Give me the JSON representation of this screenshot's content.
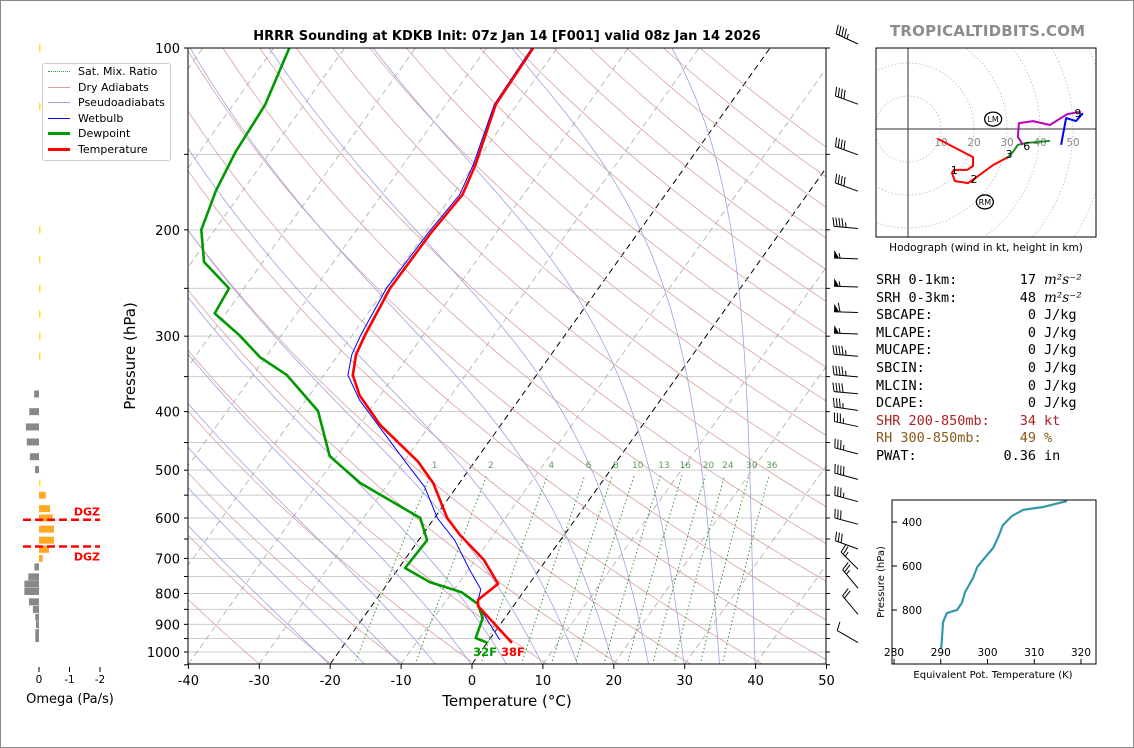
{
  "title": "HRRR Sounding at KDKB Init: 07z Jan 14 [F001] valid 08z Jan 14 2026",
  "watermark": "TROPICALTIDBITS.COM",
  "colors": {
    "temperature": "#ff0000",
    "dewpoint": "#009900",
    "wetbulb": "#0000ff",
    "dry_adiabats": "#d9a0a0",
    "pseudoadiabats": "#a0a0e0",
    "sat_mix_ratio": "#339933",
    "theta_e": "#3399aa",
    "omega_up": "#ffaa22",
    "omega_down": "#888888",
    "dgz": "#ff0000",
    "shear": "#aa2222",
    "rh": "#8b5a1a"
  },
  "legend": [
    {
      "label": "Sat. Mix. Ratio",
      "key": "sat_mix_ratio",
      "style": "dotted"
    },
    {
      "label": "Dry Adiabats",
      "key": "dry_adiabats",
      "style": "thin"
    },
    {
      "label": "Pseudoadiabats",
      "key": "pseudoadiabats",
      "style": "thin"
    },
    {
      "label": "Wetbulb",
      "key": "wetbulb",
      "style": "medium"
    },
    {
      "label": "Dewpoint",
      "key": "dewpoint",
      "style": "thick"
    },
    {
      "label": "Temperature",
      "key": "temperature",
      "style": "thick"
    }
  ],
  "surface_labels": {
    "dewpoint": "32F",
    "temperature": "38F"
  },
  "stats": [
    {
      "label": "SRH 0-1km:",
      "value": "17",
      "unit": "m²s⁻²",
      "italic": true
    },
    {
      "label": "SRH 0-3km:",
      "value": "48",
      "unit": "m²s⁻²",
      "italic": true
    },
    {
      "label": "SBCAPE:",
      "value": "0",
      "unit": "J/kg"
    },
    {
      "label": "MLCAPE:",
      "value": "0",
      "unit": "J/kg"
    },
    {
      "label": "MUCAPE:",
      "value": "0",
      "unit": "J/kg"
    },
    {
      "label": "SBCIN:",
      "value": "0",
      "unit": "J/kg"
    },
    {
      "label": "MLCIN:",
      "value": "0",
      "unit": "J/kg"
    },
    {
      "label": "DCAPE:",
      "value": "0",
      "unit": "J/kg"
    },
    {
      "label": "SHR 200-850mb:",
      "value": "34",
      "unit": "kt",
      "color": "#aa2222"
    },
    {
      "label": "RH 300-850mb:",
      "value": "49",
      "unit": "%",
      "color": "#8b5a1a"
    },
    {
      "label": "PWAT:",
      "value": "0.36",
      "unit": "in"
    }
  ],
  "chart_data": [
    {
      "type": "line",
      "name": "skewt",
      "xlabel": "Temperature (°C)",
      "ylabel": "Pressure (hPa)",
      "xlim": [
        -40,
        50
      ],
      "ylim": [
        1050,
        100
      ],
      "yscale": "log",
      "skew": true,
      "xticks": [
        -40,
        -30,
        -20,
        -10,
        0,
        10,
        20,
        30,
        40,
        50
      ],
      "yticks": [
        100,
        200,
        300,
        400,
        500,
        600,
        700,
        800,
        900,
        1000
      ],
      "highlight_isotherms": [
        0,
        -20
      ],
      "mixing_ratio_labels": [
        1,
        2,
        4,
        6,
        8,
        10,
        13,
        16,
        20,
        24,
        30,
        36
      ],
      "series": [
        {
          "name": "Temperature",
          "p": [
            966,
            892,
            839,
            820,
            771,
            704,
            640,
            600,
            525,
            484,
            421,
            376,
            348,
            322,
            299,
            250,
            202,
            175,
            156,
            124,
            100
          ],
          "t": [
            3.5,
            -1.3,
            -5.0,
            -5.6,
            -4.4,
            -8.8,
            -14.7,
            -18.2,
            -23.7,
            -28.0,
            -37.0,
            -42.9,
            -45.9,
            -47.5,
            -48.2,
            -49.4,
            -49.2,
            -48.6,
            -49.8,
            -53.0,
            -53.4
          ]
        },
        {
          "name": "Dewpoint",
          "p": [
            966,
            948,
            879,
            833,
            796,
            766,
            726,
            653,
            600,
            525,
            474,
            399,
            348,
            325,
            299,
            275,
            250,
            226,
            200,
            172,
            149,
            124,
            100
          ],
          "t": [
            0.1,
            -2.1,
            -3.1,
            -5.2,
            -8.7,
            -14.2,
            -19.1,
            -18.8,
            -22.0,
            -34.0,
            -41.0,
            -47.2,
            -55.2,
            -60.8,
            -65.9,
            -71.6,
            -72.1,
            -78.3,
            -81.9,
            -83.8,
            -84.9,
            -85.5,
            -87.8
          ]
        },
        {
          "name": "Wetbulb",
          "p": [
            955,
            833,
            787,
            733,
            653,
            600,
            533,
            484,
            383,
            348,
            322,
            299,
            250,
            202,
            175,
            156,
            124,
            100
          ],
          "t": [
            1.5,
            -5.3,
            -6.3,
            -9.7,
            -14.9,
            -19.6,
            -24.5,
            -29.8,
            -42.4,
            -46.6,
            -48.1,
            -48.8,
            -49.9,
            -49.6,
            -49.0,
            -50.1,
            -53.2,
            -53.6
          ]
        }
      ],
      "winds": [
        {
          "p": 97,
          "speed_kt": 45,
          "dir": 295
        },
        {
          "p": 122,
          "speed_kt": 40,
          "dir": 290
        },
        {
          "p": 148,
          "speed_kt": 40,
          "dir": 290
        },
        {
          "p": 170,
          "speed_kt": 40,
          "dir": 290
        },
        {
          "p": 196,
          "speed_kt": 45,
          "dir": 275
        },
        {
          "p": 220,
          "speed_kt": 55,
          "dir": 272
        },
        {
          "p": 245,
          "speed_kt": 55,
          "dir": 272
        },
        {
          "p": 270,
          "speed_kt": 60,
          "dir": 272
        },
        {
          "p": 293,
          "speed_kt": 55,
          "dir": 272
        },
        {
          "p": 319,
          "speed_kt": 45,
          "dir": 275
        },
        {
          "p": 345,
          "speed_kt": 45,
          "dir": 275
        },
        {
          "p": 368,
          "speed_kt": 40,
          "dir": 275
        },
        {
          "p": 392,
          "speed_kt": 35,
          "dir": 278
        },
        {
          "p": 417,
          "speed_kt": 35,
          "dir": 282
        },
        {
          "p": 463,
          "speed_kt": 35,
          "dir": 285
        },
        {
          "p": 510,
          "speed_kt": 40,
          "dir": 285
        },
        {
          "p": 555,
          "speed_kt": 35,
          "dir": 285
        },
        {
          "p": 605,
          "speed_kt": 30,
          "dir": 285
        },
        {
          "p": 665,
          "speed_kt": 30,
          "dir": 290
        },
        {
          "p": 718,
          "speed_kt": 25,
          "dir": 315
        },
        {
          "p": 772,
          "speed_kt": 25,
          "dir": 320
        },
        {
          "p": 853,
          "speed_kt": 20,
          "dir": 320
        },
        {
          "p": 950,
          "speed_kt": 10,
          "dir": 300
        }
      ]
    },
    {
      "type": "bar",
      "name": "omega",
      "xlabel": "Omega (Pa/s)",
      "xticks": [
        0,
        -1,
        -2
      ],
      "p": [
        100,
        125,
        200,
        224,
        250,
        276,
        300,
        324,
        374,
        400,
        424,
        449,
        475,
        499,
        525,
        550,
        579,
        600,
        626,
        653,
        676,
        700,
        723,
        751,
        772,
        794,
        826,
        850,
        876,
        901,
        929,
        950
      ],
      "values": [
        -0.02,
        -0.03,
        -0.02,
        -0.03,
        -0.05,
        -0.05,
        -0.03,
        -0.02,
        0.16,
        0.32,
        0.43,
        0.4,
        0.3,
        0.13,
        -0.03,
        -0.22,
        -0.36,
        -0.45,
        -0.49,
        -0.49,
        -0.33,
        -0.12,
        0.15,
        0.35,
        0.48,
        0.48,
        0.33,
        0.2,
        0.12,
        0.1,
        0.12,
        0.12
      ],
      "dgz": {
        "label": "DGZ",
        "p_top": 604,
        "p_bottom": 669
      }
    },
    {
      "type": "line",
      "name": "hodograph",
      "xlabel": "Hodograph (wind in kt, height in km)",
      "ring_labels": [
        10,
        20,
        30,
        40,
        50
      ],
      "segments": [
        {
          "color": "#ff0000",
          "u": [
            9.1,
            19.7,
            19.7,
            17.9,
            13.9,
            13.3,
            14.2,
            18.2,
            20.9,
            25.8,
            30.3
          ],
          "v": [
            -3.0,
            -8.5,
            -11.2,
            -12.4,
            -12.4,
            -13.3,
            -15.8,
            -16.4,
            -14.5,
            -10.9,
            -8.5
          ]
        },
        {
          "color": "#228b22",
          "u": [
            30.3,
            31.8,
            33.3,
            36.1,
            43.0
          ],
          "v": [
            -8.5,
            -7.0,
            -4.8,
            -4.2,
            -3.6
          ]
        },
        {
          "color": "#bb00bb",
          "u": [
            34.8,
            33.3,
            33.6,
            37.9,
            43.0,
            48.2,
            52.1
          ],
          "v": [
            -4.8,
            -2.4,
            1.8,
            2.4,
            1.2,
            4.5,
            5.2
          ]
        },
        {
          "color": "#0000ff",
          "u": [
            46.4,
            47.9,
            50.9,
            53.0
          ],
          "v": [
            -4.8,
            3.3,
            2.4,
            4.8
          ]
        }
      ],
      "height_labels": [
        {
          "text": "1",
          "u": 14,
          "v": -12.4
        },
        {
          "text": "2",
          "u": 20,
          "v": -15.2
        },
        {
          "text": "3",
          "u": 30.6,
          "v": -7.6
        },
        {
          "text": "6",
          "u": 36,
          "v": -5.2
        },
        {
          "text": "9",
          "u": 51.5,
          "v": 4.8
        }
      ],
      "storm_motion": [
        {
          "text": "LM",
          "u": 25.8,
          "v": 3.0
        },
        {
          "text": "RM",
          "u": 23.3,
          "v": -22.1
        }
      ]
    },
    {
      "type": "line",
      "name": "theta_e",
      "xlabel": "Equivalent Pot. Temperature (K)",
      "ylabel": "Pressure (hPa)",
      "xlim": [
        280,
        323
      ],
      "ylim": [
        1054,
        309
      ],
      "xticks": [
        280,
        290,
        300,
        310,
        320
      ],
      "yticks": [
        400,
        600,
        800
      ],
      "p": [
        973,
        855,
        814,
        800,
        768,
        718,
        655,
        605,
        573,
        518,
        473,
        414,
        373,
        345,
        332,
        305
      ],
      "theta_e": [
        290.1,
        290.5,
        291.3,
        293.5,
        294.5,
        295.2,
        296.9,
        297.8,
        299.0,
        301.2,
        302.2,
        303.3,
        305.2,
        307.6,
        311.9,
        317.0
      ]
    }
  ]
}
